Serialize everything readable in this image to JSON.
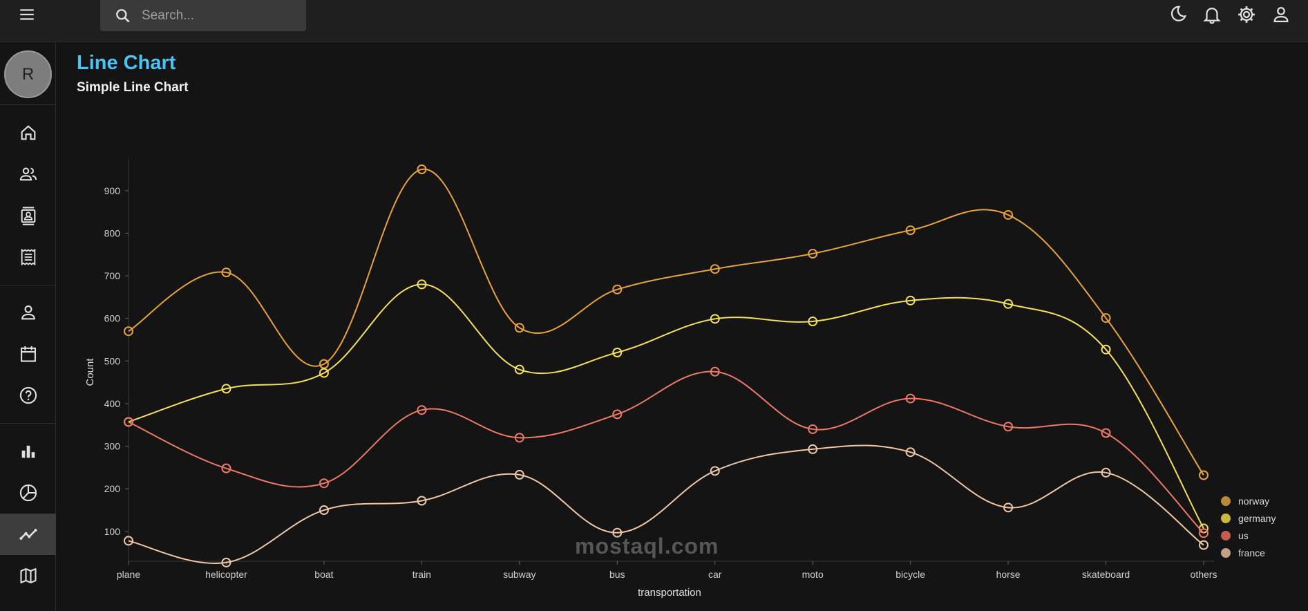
{
  "header": {
    "search_placeholder": "Search..."
  },
  "icons": {
    "menu": "menu-icon",
    "search": "search-icon",
    "dark_mode": "moon-icon",
    "notifications": "bell-icon",
    "settings": "gear-icon",
    "profile": "person-icon"
  },
  "sidebar": {
    "avatar_initial": "R",
    "items": [
      {
        "name": "home",
        "icon": "home-icon"
      },
      {
        "name": "team",
        "icon": "people-icon"
      },
      {
        "name": "contacts",
        "icon": "contacts-icon"
      },
      {
        "name": "invoices",
        "icon": "receipt-icon"
      },
      {
        "name": "profile",
        "icon": "person-icon"
      },
      {
        "name": "calendar",
        "icon": "calendar-icon"
      },
      {
        "name": "faq",
        "icon": "help-icon"
      },
      {
        "name": "bar",
        "icon": "bar-chart-icon"
      },
      {
        "name": "pie",
        "icon": "pie-chart-icon"
      },
      {
        "name": "line",
        "icon": "line-chart-icon",
        "active": true
      },
      {
        "name": "geography",
        "icon": "map-icon"
      }
    ]
  },
  "page": {
    "title": "Line Chart",
    "subtitle": "Simple Line Chart"
  },
  "watermark": "mostaql.com",
  "colors": {
    "accent": "#4cc3f2",
    "norway": "#e8a33d",
    "germany": "#f5e15a",
    "us": "#ee7a66",
    "france": "#f0c8a8"
  },
  "chart_data": {
    "type": "line",
    "title": "",
    "xlabel": "transportation",
    "ylabel": "Count",
    "ylim": [
      30,
      950
    ],
    "yticks": [
      100,
      200,
      300,
      400,
      500,
      600,
      700,
      800,
      900
    ],
    "categories": [
      "plane",
      "helicopter",
      "boat",
      "train",
      "subway",
      "bus",
      "car",
      "moto",
      "bicycle",
      "horse",
      "skateboard",
      "others"
    ],
    "legend_position": "bottom-right",
    "series": [
      {
        "name": "norway",
        "color": "#e8a33d",
        "legend_color": "#b98a3a",
        "values": [
          570,
          708,
          493,
          950,
          578,
          668,
          716,
          752,
          807,
          843,
          601,
          232
        ]
      },
      {
        "name": "germany",
        "color": "#f5e15a",
        "legend_color": "#c9b83e",
        "values": [
          357,
          435,
          472,
          680,
          480,
          520,
          599,
          593,
          642,
          634,
          527,
          107
        ]
      },
      {
        "name": "us",
        "color": "#ee7a66",
        "legend_color": "#c65b4e",
        "values": [
          357,
          248,
          213,
          385,
          320,
          375,
          475,
          340,
          412,
          346,
          331,
          96
        ]
      },
      {
        "name": "france",
        "color": "#f0c8a8",
        "legend_color": "#c2a085",
        "values": [
          78,
          27,
          150,
          172,
          233,
          97,
          242,
          293,
          286,
          156,
          238,
          68
        ]
      }
    ]
  }
}
